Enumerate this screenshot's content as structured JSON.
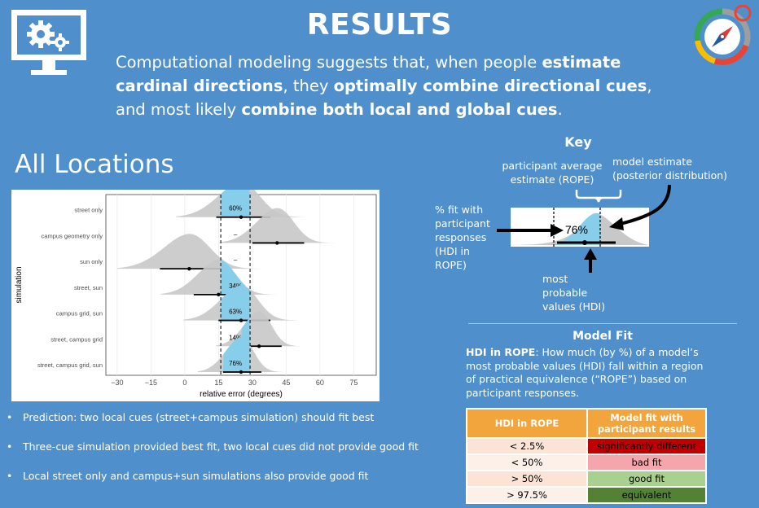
{
  "header": {
    "title": "RESULTS",
    "summary": {
      "p1": "Computational modeling suggests that, when people ",
      "b1": "estimate cardinal directions",
      "p2": ", they ",
      "b2": "optimally combine directional cues",
      "p3": ", and most likely ",
      "b3": "combine both local and global cues",
      "p4": "."
    }
  },
  "section_title": "All Locations",
  "chart_data": {
    "type": "ridgeline",
    "xlabel": "relative error (degrees)",
    "ylabel": "simulation",
    "x_ticks": [
      "−30",
      "−15",
      "0",
      "15",
      "30",
      "45",
      "60",
      "75"
    ],
    "x_range": [
      -35,
      85
    ],
    "rope": [
      16,
      29
    ],
    "series": [
      {
        "name": "street only",
        "mode": 25,
        "hdi": [
          14,
          38
        ],
        "label": "60%",
        "fit": 0.6,
        "spread": 9
      },
      {
        "name": "campus geometry only",
        "mode": 41,
        "hdi": [
          30,
          53
        ],
        "label": "–",
        "fit": 0.0,
        "spread": 8
      },
      {
        "name": "sun only",
        "mode": 2,
        "hdi": [
          -11,
          16
        ],
        "label": "–",
        "fit": 0.0,
        "spread": 10
      },
      {
        "name": "street, sun",
        "mode": 15,
        "hdi": [
          4,
          27
        ],
        "label": "34%",
        "fit": 0.34,
        "spread": 8
      },
      {
        "name": "campus grid, sun",
        "mode": 25,
        "hdi": [
          15,
          38
        ],
        "label": "63%",
        "fit": 0.63,
        "spread": 8
      },
      {
        "name": "street, campus grid",
        "mode": 33,
        "hdi": [
          25,
          43
        ],
        "label": "14%",
        "fit": 0.14,
        "spread": 6
      },
      {
        "name": "street, campus grid, sun",
        "mode": 25,
        "hdi": [
          17,
          34
        ],
        "label": "76%",
        "fit": 0.76,
        "spread": 6
      }
    ]
  },
  "key": {
    "title": "Key",
    "rope_label": "participant average estimate (ROPE)",
    "model_label": "model estimate (posterior distribution)",
    "fit_label": "% fit with participant responses (HDI in ROPE)",
    "hdi_label": "most probable values (HDI)",
    "example_pct": "76%"
  },
  "model_fit": {
    "title": "Model Fit",
    "desc_bold": "HDI in ROPE",
    "desc_rest": ": How much (by %) of a model’s most probable values (HDI) fall within a region of practical equivalence (“ROPE”) based on participant responses.",
    "table": {
      "headers": [
        "HDI in ROPE",
        "Model fit with participant results"
      ],
      "rows": [
        {
          "hdi": "< 2.5%",
          "fit": "significantly different",
          "fit_color": "#c00000",
          "hdi_color": "#fbe4d5"
        },
        {
          "hdi": "< 50%",
          "fit": "bad fit",
          "fit_color": "#f4a6ac",
          "hdi_color": "#fdf0e8"
        },
        {
          "hdi": "> 50%",
          "fit": "good fit",
          "fit_color": "#a9d08e",
          "hdi_color": "#fbe4d5"
        },
        {
          "hdi": "> 97.5%",
          "fit": "equivalent",
          "fit_color": "#548235",
          "hdi_color": "#fdf0e8"
        }
      ]
    }
  },
  "bullets": [
    "Prediction: two local cues (street+campus simulation) should fit best",
    "Three-cue simulation provided best fit, two local cues did not provide good fit",
    "Local street only and campus+sun simulations also provide good fit"
  ],
  "colors": {
    "background": "#4f8fcb",
    "hdi_fill": "#87ceeb",
    "density_fill": "#c8c8c8",
    "table_header": "#f2a53c"
  }
}
